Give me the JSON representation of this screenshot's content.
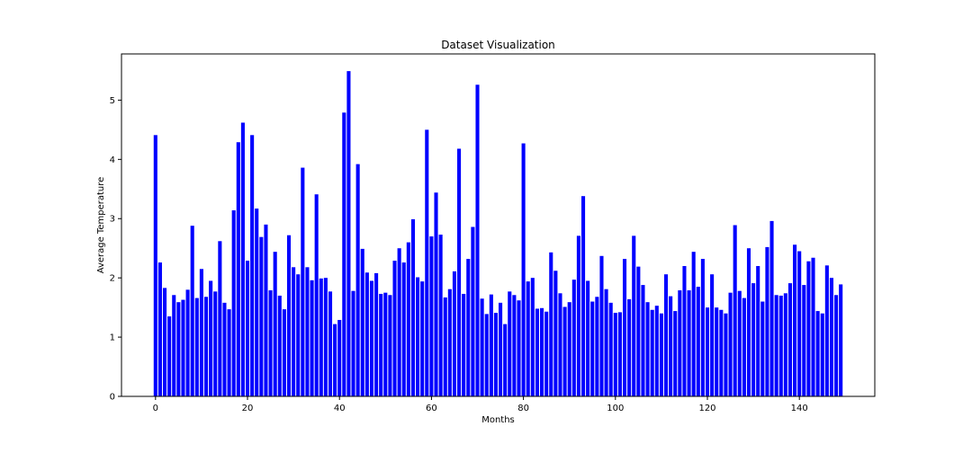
{
  "chart_data": {
    "type": "bar",
    "title": "Dataset Visualization",
    "xlabel": "Months",
    "ylabel": "Average Temperature",
    "xlim": [
      -7.4,
      156.4
    ],
    "ylim": [
      0,
      5.78
    ],
    "xticks": [
      0,
      20,
      40,
      60,
      80,
      100,
      120,
      140
    ],
    "yticks": [
      0,
      1,
      2,
      3,
      4,
      5
    ],
    "grid": false,
    "bar_color": "#0000ff",
    "x": [
      0,
      1,
      2,
      3,
      4,
      5,
      6,
      7,
      8,
      9,
      10,
      11,
      12,
      13,
      14,
      15,
      16,
      17,
      18,
      19,
      20,
      21,
      22,
      23,
      24,
      25,
      26,
      27,
      28,
      29,
      30,
      31,
      32,
      33,
      34,
      35,
      36,
      37,
      38,
      39,
      40,
      41,
      42,
      43,
      44,
      45,
      46,
      47,
      48,
      49,
      50,
      51,
      52,
      53,
      54,
      55,
      56,
      57,
      58,
      59,
      60,
      61,
      62,
      63,
      64,
      65,
      66,
      67,
      68,
      69,
      70,
      71,
      72,
      73,
      74,
      75,
      76,
      77,
      78,
      79,
      80,
      81,
      82,
      83,
      84,
      85,
      86,
      87,
      88,
      89,
      90,
      91,
      92,
      93,
      94,
      95,
      96,
      97,
      98,
      99,
      100,
      101,
      102,
      103,
      104,
      105,
      106,
      107,
      108,
      109,
      110,
      111,
      112,
      113,
      114,
      115,
      116,
      117,
      118,
      119,
      120,
      121,
      122,
      123,
      124,
      125,
      126,
      127,
      128,
      129,
      130,
      131,
      132,
      133,
      134,
      135,
      136,
      137,
      138,
      139,
      140,
      141,
      142,
      143,
      144,
      145,
      146,
      147,
      148,
      149
    ],
    "values": [
      4.41,
      2.26,
      1.83,
      1.35,
      1.71,
      1.59,
      1.63,
      1.8,
      2.88,
      1.66,
      2.15,
      1.68,
      1.95,
      1.77,
      2.62,
      1.58,
      1.47,
      3.14,
      4.29,
      4.62,
      2.29,
      4.41,
      3.17,
      2.69,
      2.9,
      1.79,
      2.44,
      1.7,
      1.47,
      2.72,
      2.18,
      2.06,
      3.86,
      2.18,
      1.96,
      3.41,
      1.99,
      2.0,
      1.77,
      1.22,
      1.29,
      4.79,
      5.49,
      1.78,
      3.92,
      2.49,
      2.09,
      1.95,
      2.08,
      1.73,
      1.75,
      1.71,
      2.29,
      2.5,
      2.26,
      2.6,
      2.99,
      2.01,
      1.94,
      4.5,
      2.7,
      3.44,
      2.73,
      1.67,
      1.81,
      2.11,
      4.18,
      1.73,
      2.32,
      2.86,
      5.26,
      1.65,
      1.39,
      1.72,
      1.41,
      1.58,
      1.22,
      1.77,
      1.71,
      1.62,
      4.27,
      1.94,
      2.0,
      1.48,
      1.49,
      1.43,
      2.43,
      2.12,
      1.74,
      1.51,
      1.59,
      1.97,
      2.71,
      3.38,
      1.95,
      1.6,
      1.68,
      2.37,
      1.81,
      1.58,
      1.41,
      1.42,
      2.32,
      1.64,
      2.71,
      2.19,
      1.88,
      1.59,
      1.46,
      1.53,
      1.4,
      2.06,
      1.69,
      1.44,
      1.79,
      2.2,
      1.79,
      2.44,
      1.85,
      2.32,
      1.5,
      2.06,
      1.5,
      1.46,
      1.4,
      1.75,
      2.89,
      1.78,
      1.66,
      2.5,
      1.91,
      2.2,
      1.6,
      2.52,
      2.96,
      1.71,
      1.7,
      1.74,
      1.91,
      2.56,
      2.45,
      1.88,
      2.28,
      2.34,
      1.44,
      1.4,
      2.21,
      2.0,
      1.71,
      1.89
    ]
  }
}
